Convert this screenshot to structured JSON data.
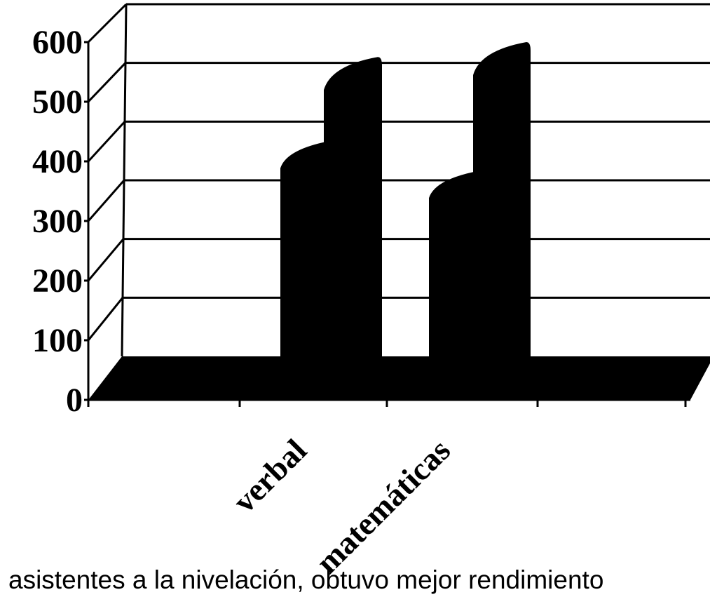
{
  "chart_data": {
    "type": "bar",
    "style": "3d",
    "categories": [
      "verbal",
      "matemáticas"
    ],
    "series": [
      {
        "values": [
          425,
          375
        ]
      },
      {
        "values": [
          575,
          600
        ]
      }
    ],
    "yticks": [
      "0",
      "100",
      "200",
      "300",
      "400",
      "500",
      "600"
    ],
    "ylim": [
      0,
      600
    ],
    "grid": true,
    "legend": "none",
    "bar_color": "#000000"
  },
  "caption": "asistentes a la nivelación, obtuvo mejor rendimiento"
}
